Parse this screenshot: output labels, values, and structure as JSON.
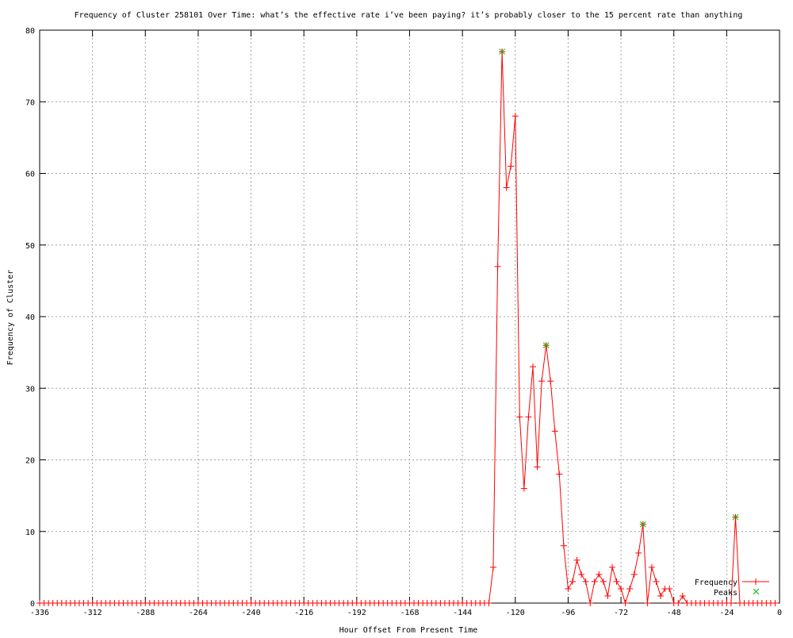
{
  "chart_data": {
    "type": "line",
    "title": "Frequency of Cluster 258101 Over Time: what’s the effective rate i’ve been paying? it’s probably closer to the 15 percent rate than anything",
    "xlabel": "Hour Offset From Present Time",
    "ylabel": "Frequency of Cluster",
    "xlim": [
      -336,
      0
    ],
    "ylim": [
      0,
      80
    ],
    "xticks": [
      -336,
      -312,
      -288,
      -264,
      -240,
      -216,
      -192,
      -168,
      -144,
      -120,
      -96,
      -72,
      -48,
      -24,
      0
    ],
    "yticks": [
      0,
      10,
      20,
      30,
      40,
      50,
      60,
      70,
      80
    ],
    "grid": true,
    "legend_position": "bottom-right",
    "series": [
      {
        "name": "Frequency",
        "color": "#ff0000",
        "marker": "plus",
        "x": [
          -336,
          -334,
          -332,
          -330,
          -328,
          -326,
          -324,
          -322,
          -320,
          -318,
          -316,
          -314,
          -312,
          -310,
          -308,
          -306,
          -304,
          -302,
          -300,
          -298,
          -296,
          -294,
          -292,
          -290,
          -288,
          -286,
          -284,
          -282,
          -280,
          -278,
          -276,
          -274,
          -272,
          -270,
          -268,
          -266,
          -264,
          -262,
          -260,
          -258,
          -256,
          -254,
          -252,
          -250,
          -248,
          -246,
          -244,
          -242,
          -240,
          -238,
          -236,
          -234,
          -232,
          -230,
          -228,
          -226,
          -224,
          -222,
          -220,
          -218,
          -216,
          -214,
          -212,
          -210,
          -208,
          -206,
          -204,
          -202,
          -200,
          -198,
          -196,
          -194,
          -192,
          -190,
          -188,
          -186,
          -184,
          -182,
          -180,
          -178,
          -176,
          -174,
          -172,
          -170,
          -168,
          -166,
          -164,
          -162,
          -160,
          -158,
          -156,
          -154,
          -152,
          -150,
          -148,
          -146,
          -144,
          -142,
          -140,
          -138,
          -136,
          -134,
          -132,
          -130,
          -128,
          -126,
          -124,
          -122,
          -120,
          -118,
          -116,
          -114,
          -112,
          -110,
          -108,
          -106,
          -104,
          -102,
          -100,
          -98,
          -96,
          -94,
          -92,
          -90,
          -88,
          -86,
          -84,
          -82,
          -80,
          -78,
          -76,
          -74,
          -72,
          -70,
          -68,
          -66,
          -64,
          -62,
          -60,
          -58,
          -56,
          -54,
          -52,
          -50,
          -48,
          -46,
          -44,
          -42,
          -40,
          -38,
          -36,
          -34,
          -32,
          -30,
          -28,
          -26,
          -24,
          -22,
          -20,
          -18,
          -16,
          -14,
          -12,
          -10,
          -8,
          -6,
          -4,
          -2
        ],
        "y": [
          0,
          0,
          0,
          0,
          0,
          0,
          0,
          0,
          0,
          0,
          0,
          0,
          0,
          0,
          0,
          0,
          0,
          0,
          0,
          0,
          0,
          0,
          0,
          0,
          0,
          0,
          0,
          0,
          0,
          0,
          0,
          0,
          0,
          0,
          0,
          0,
          0,
          0,
          0,
          0,
          0,
          0,
          0,
          0,
          0,
          0,
          0,
          0,
          0,
          0,
          0,
          0,
          0,
          0,
          0,
          0,
          0,
          0,
          0,
          0,
          0,
          0,
          0,
          0,
          0,
          0,
          0,
          0,
          0,
          0,
          0,
          0,
          0,
          0,
          0,
          0,
          0,
          0,
          0,
          0,
          0,
          0,
          0,
          0,
          0,
          0,
          0,
          0,
          0,
          0,
          0,
          0,
          0,
          0,
          0,
          0,
          0,
          0,
          0,
          0,
          0,
          0,
          0,
          5,
          47,
          77,
          58,
          61,
          68,
          26,
          16,
          26,
          33,
          19,
          31,
          36,
          31,
          24,
          18,
          8,
          2,
          3,
          6,
          4,
          3,
          0,
          3,
          4,
          3,
          1,
          5,
          3,
          2,
          0,
          2,
          4,
          7,
          11,
          0,
          5,
          3,
          1,
          2,
          2,
          0,
          0,
          1,
          0,
          0,
          0,
          0,
          0,
          0,
          0,
          0,
          0,
          0,
          0,
          12,
          0,
          0,
          0,
          0,
          0,
          0,
          0,
          0,
          0
        ]
      },
      {
        "name": "Peaks",
        "color": "#00c000",
        "marker": "cross",
        "x": [
          -126,
          -106,
          -62,
          -20
        ],
        "y": [
          77,
          36,
          11,
          12
        ]
      }
    ]
  }
}
